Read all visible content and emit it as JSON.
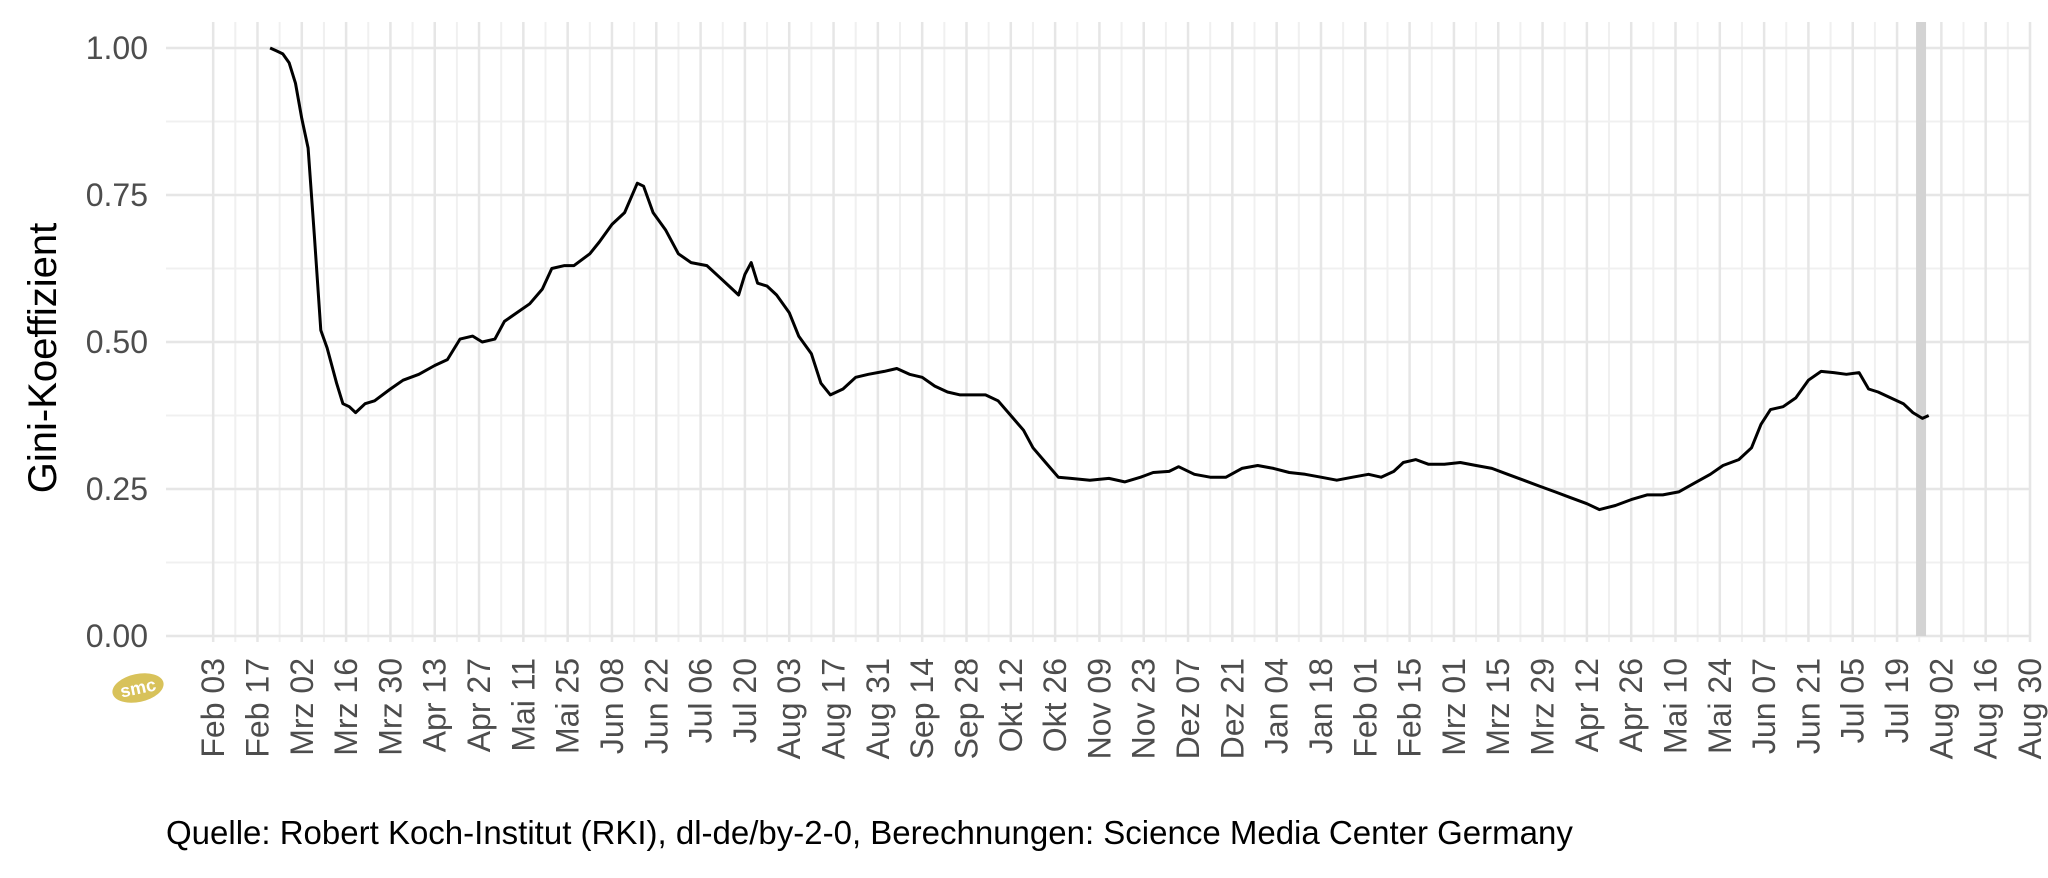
{
  "caption": "Quelle: Robert Koch-Institut (RKI), dl-de/by-2-0, Berechnungen: Science Media Center Germany",
  "logo": {
    "text": "smc",
    "color": "#d8c25a"
  },
  "chart_data": {
    "type": "line",
    "title": "",
    "xlabel": "",
    "ylabel": "Gini-Koeffizient",
    "ylim": [
      0,
      1
    ],
    "xlim": [
      "2020-01-27",
      "2021-08-30"
    ],
    "y_ticks": [
      0.0,
      0.25,
      0.5,
      0.75,
      1.0
    ],
    "y_tick_labels": [
      "0.00",
      "0.25",
      "0.50",
      "0.75",
      "1.00"
    ],
    "x_ticks": [
      "2020-02-03",
      "2020-02-17",
      "2020-03-02",
      "2020-03-16",
      "2020-03-30",
      "2020-04-13",
      "2020-04-27",
      "2020-05-11",
      "2020-05-25",
      "2020-06-08",
      "2020-06-22",
      "2020-07-06",
      "2020-07-20",
      "2020-08-03",
      "2020-08-17",
      "2020-08-31",
      "2020-09-14",
      "2020-09-28",
      "2020-10-12",
      "2020-10-26",
      "2020-11-09",
      "2020-11-23",
      "2020-12-07",
      "2020-12-21",
      "2021-01-04",
      "2021-01-18",
      "2021-02-01",
      "2021-02-15",
      "2021-03-01",
      "2021-03-15",
      "2021-03-29",
      "2021-04-12",
      "2021-04-26",
      "2021-05-10",
      "2021-05-24",
      "2021-06-07",
      "2021-06-21",
      "2021-07-05",
      "2021-07-19",
      "2021-08-02",
      "2021-08-16",
      "2021-08-30"
    ],
    "x_tick_labels": [
      "Feb 03",
      "Feb 17",
      "Mrz 02",
      "Mrz 16",
      "Mrz 30",
      "Apr 13",
      "Apr 27",
      "Mai 11",
      "Mai 25",
      "Jun 08",
      "Jun 22",
      "Jul 06",
      "Jul 20",
      "Aug 03",
      "Aug 17",
      "Aug 31",
      "Sep 14",
      "Sep 28",
      "Okt 12",
      "Okt 26",
      "Nov 09",
      "Nov 23",
      "Dez 07",
      "Dez 21",
      "Jan 04",
      "Jan 18",
      "Feb 01",
      "Feb 15",
      "Mrz 01",
      "Mrz 15",
      "Mrz 29",
      "Apr 12",
      "Apr 26",
      "Mai 10",
      "Mai 24",
      "Jun 07",
      "Jun 21",
      "Jul 05",
      "Jul 19",
      "Aug 02",
      "Aug 16",
      "Aug 30"
    ],
    "grid": true,
    "highlight_band": {
      "from": "2021-07-25",
      "to": "2021-07-28",
      "color": "#d3d3d3"
    },
    "series": [
      {
        "color": "#000000",
        "points": [
          [
            "2020-02-21",
            1.0
          ],
          [
            "2020-02-23",
            0.995
          ],
          [
            "2020-02-25",
            0.99
          ],
          [
            "2020-02-27",
            0.975
          ],
          [
            "2020-02-29",
            0.94
          ],
          [
            "2020-03-02",
            0.88
          ],
          [
            "2020-03-04",
            0.83
          ],
          [
            "2020-03-06",
            0.68
          ],
          [
            "2020-03-08",
            0.52
          ],
          [
            "2020-03-10",
            0.49
          ],
          [
            "2020-03-13",
            0.43
          ],
          [
            "2020-03-15",
            0.395
          ],
          [
            "2020-03-17",
            0.39
          ],
          [
            "2020-03-19",
            0.38
          ],
          [
            "2020-03-22",
            0.395
          ],
          [
            "2020-03-25",
            0.4
          ],
          [
            "2020-03-30",
            0.42
          ],
          [
            "2020-04-03",
            0.435
          ],
          [
            "2020-04-08",
            0.445
          ],
          [
            "2020-04-13",
            0.46
          ],
          [
            "2020-04-17",
            0.47
          ],
          [
            "2020-04-21",
            0.505
          ],
          [
            "2020-04-25",
            0.51
          ],
          [
            "2020-04-28",
            0.5
          ],
          [
            "2020-05-02",
            0.505
          ],
          [
            "2020-05-05",
            0.535
          ],
          [
            "2020-05-09",
            0.55
          ],
          [
            "2020-05-13",
            0.565
          ],
          [
            "2020-05-17",
            0.59
          ],
          [
            "2020-05-20",
            0.625
          ],
          [
            "2020-05-24",
            0.63
          ],
          [
            "2020-05-27",
            0.63
          ],
          [
            "2020-06-01",
            0.65
          ],
          [
            "2020-06-04",
            0.67
          ],
          [
            "2020-06-08",
            0.7
          ],
          [
            "2020-06-12",
            0.72
          ],
          [
            "2020-06-16",
            0.77
          ],
          [
            "2020-06-18",
            0.765
          ],
          [
            "2020-06-21",
            0.72
          ],
          [
            "2020-06-25",
            0.69
          ],
          [
            "2020-06-29",
            0.65
          ],
          [
            "2020-07-03",
            0.635
          ],
          [
            "2020-07-08",
            0.63
          ],
          [
            "2020-07-12",
            0.61
          ],
          [
            "2020-07-15",
            0.595
          ],
          [
            "2020-07-18",
            0.58
          ],
          [
            "2020-07-20",
            0.615
          ],
          [
            "2020-07-22",
            0.635
          ],
          [
            "2020-07-24",
            0.6
          ],
          [
            "2020-07-27",
            0.595
          ],
          [
            "2020-07-30",
            0.58
          ],
          [
            "2020-08-03",
            0.55
          ],
          [
            "2020-08-06",
            0.51
          ],
          [
            "2020-08-10",
            0.48
          ],
          [
            "2020-08-13",
            0.43
          ],
          [
            "2020-08-16",
            0.41
          ],
          [
            "2020-08-20",
            0.42
          ],
          [
            "2020-08-24",
            0.44
          ],
          [
            "2020-08-28",
            0.445
          ],
          [
            "2020-09-02",
            0.45
          ],
          [
            "2020-09-06",
            0.455
          ],
          [
            "2020-09-10",
            0.445
          ],
          [
            "2020-09-14",
            0.44
          ],
          [
            "2020-09-18",
            0.425
          ],
          [
            "2020-09-22",
            0.415
          ],
          [
            "2020-09-26",
            0.41
          ],
          [
            "2020-09-30",
            0.41
          ],
          [
            "2020-10-04",
            0.41
          ],
          [
            "2020-10-08",
            0.4
          ],
          [
            "2020-10-12",
            0.375
          ],
          [
            "2020-10-16",
            0.35
          ],
          [
            "2020-10-19",
            0.32
          ],
          [
            "2020-10-23",
            0.295
          ],
          [
            "2020-10-27",
            0.27
          ],
          [
            "2020-10-31",
            0.268
          ],
          [
            "2020-11-06",
            0.265
          ],
          [
            "2020-11-12",
            0.268
          ],
          [
            "2020-11-17",
            0.262
          ],
          [
            "2020-11-22",
            0.27
          ],
          [
            "2020-11-26",
            0.278
          ],
          [
            "2020-12-01",
            0.28
          ],
          [
            "2020-12-04",
            0.288
          ],
          [
            "2020-12-09",
            0.275
          ],
          [
            "2020-12-14",
            0.27
          ],
          [
            "2020-12-19",
            0.27
          ],
          [
            "2020-12-24",
            0.285
          ],
          [
            "2020-12-29",
            0.29
          ],
          [
            "2021-01-03",
            0.285
          ],
          [
            "2021-01-08",
            0.278
          ],
          [
            "2021-01-13",
            0.275
          ],
          [
            "2021-01-18",
            0.27
          ],
          [
            "2021-01-23",
            0.265
          ],
          [
            "2021-01-28",
            0.27
          ],
          [
            "2021-02-02",
            0.275
          ],
          [
            "2021-02-06",
            0.27
          ],
          [
            "2021-02-10",
            0.28
          ],
          [
            "2021-02-13",
            0.295
          ],
          [
            "2021-02-17",
            0.3
          ],
          [
            "2021-02-21",
            0.292
          ],
          [
            "2021-02-26",
            0.292
          ],
          [
            "2021-03-03",
            0.295
          ],
          [
            "2021-03-08",
            0.29
          ],
          [
            "2021-03-13",
            0.285
          ],
          [
            "2021-03-18",
            0.275
          ],
          [
            "2021-03-23",
            0.265
          ],
          [
            "2021-03-28",
            0.255
          ],
          [
            "2021-04-02",
            0.245
          ],
          [
            "2021-04-07",
            0.235
          ],
          [
            "2021-04-12",
            0.225
          ],
          [
            "2021-04-16",
            0.215
          ],
          [
            "2021-04-21",
            0.222
          ],
          [
            "2021-04-26",
            0.232
          ],
          [
            "2021-05-01",
            0.24
          ],
          [
            "2021-05-06",
            0.24
          ],
          [
            "2021-05-11",
            0.245
          ],
          [
            "2021-05-16",
            0.26
          ],
          [
            "2021-05-21",
            0.275
          ],
          [
            "2021-05-25",
            0.29
          ],
          [
            "2021-05-30",
            0.3
          ],
          [
            "2021-06-03",
            0.32
          ],
          [
            "2021-06-06",
            0.36
          ],
          [
            "2021-06-09",
            0.385
          ],
          [
            "2021-06-13",
            0.39
          ],
          [
            "2021-06-17",
            0.405
          ],
          [
            "2021-06-21",
            0.435
          ],
          [
            "2021-06-25",
            0.45
          ],
          [
            "2021-06-29",
            0.448
          ],
          [
            "2021-07-03",
            0.445
          ],
          [
            "2021-07-07",
            0.448
          ],
          [
            "2021-07-10",
            0.42
          ],
          [
            "2021-07-13",
            0.415
          ],
          [
            "2021-07-17",
            0.405
          ],
          [
            "2021-07-21",
            0.395
          ],
          [
            "2021-07-24",
            0.38
          ],
          [
            "2021-07-27",
            0.37
          ],
          [
            "2021-07-29",
            0.375
          ]
        ]
      }
    ]
  }
}
